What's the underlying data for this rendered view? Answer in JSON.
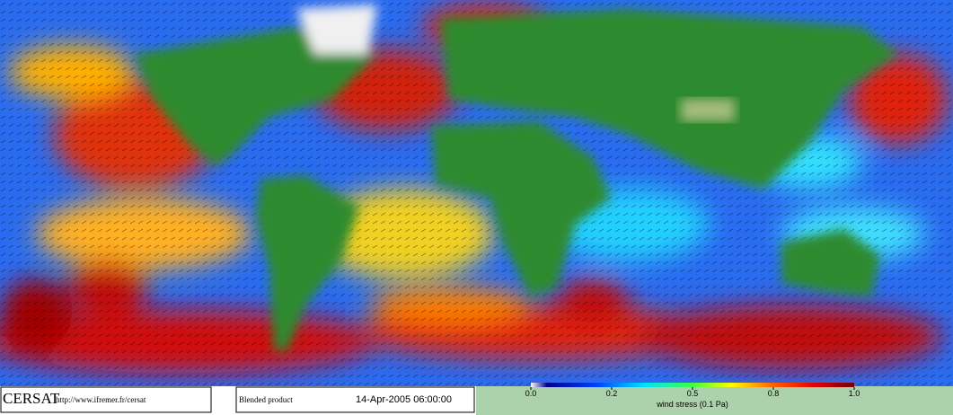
{
  "header": {
    "logo": "CERSAT",
    "url": "http://www.ifremer.fr/cersat",
    "product": "Blended product",
    "datetime": "14-Apr-2005 06:00:00"
  },
  "colorbar": {
    "label": "wind stress (0.1 Pa)",
    "ticks": [
      {
        "value": 0,
        "label": "0.0"
      },
      0.2,
      0.5,
      0.8,
      {
        "value": 1,
        "label": "1.0"
      }
    ]
  }
}
